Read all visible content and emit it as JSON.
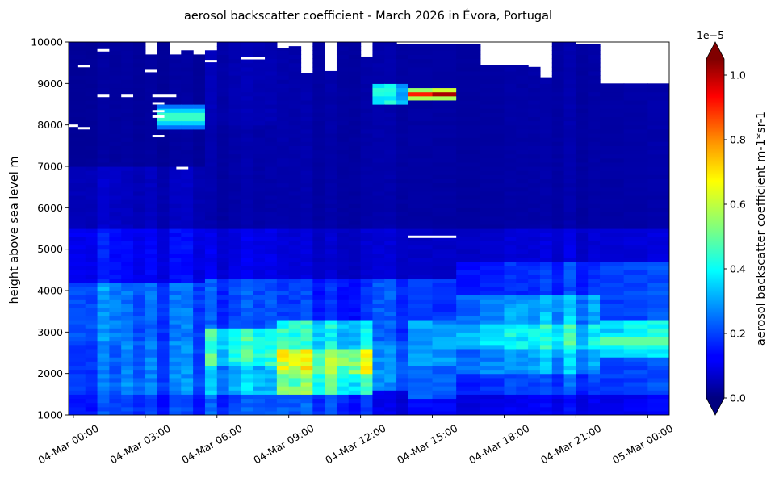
{
  "chart_data": {
    "type": "heatmap",
    "title": "aerosol backscatter coefficient - March 2026 in Évora, Portugal",
    "ylabel": "height above sea level m",
    "xlabel": "",
    "x_ticks": [
      "04-Mar 00:00",
      "04-Mar 03:00",
      "04-Mar 06:00",
      "04-Mar 09:00",
      "04-Mar 12:00",
      "04-Mar 15:00",
      "04-Mar 18:00",
      "04-Mar 21:00",
      "05-Mar 00:00"
    ],
    "x_tick_hours": [
      0,
      3,
      6,
      9,
      12,
      15,
      18,
      21,
      24
    ],
    "xlim_hours": [
      -0.2,
      24.9
    ],
    "ylim": [
      1000,
      10000
    ],
    "y_ticks": [
      1000,
      2000,
      3000,
      4000,
      5000,
      6000,
      7000,
      8000,
      9000,
      10000
    ],
    "colorbar": {
      "label": "aerosol backscatter coefficient m-1*sr-1",
      "multiplier": "1e−5",
      "ticks": [
        0.0,
        0.2,
        0.4,
        0.6,
        0.8,
        1.0
      ],
      "tick_labels": [
        "0.0",
        "0.2",
        "0.4",
        "0.6",
        "0.8",
        "1.0"
      ],
      "vmin": 0.0,
      "vmax": 1.05,
      "colormap": "jet",
      "extend": "both"
    },
    "column_edges_hours": [
      -0.2,
      0.5,
      1.0,
      1.5,
      2.0,
      2.5,
      3.0,
      3.5,
      4.0,
      4.5,
      5.0,
      5.5,
      6.0,
      6.5,
      7.0,
      7.5,
      8.0,
      8.5,
      9.0,
      9.5,
      10.0,
      10.5,
      11.0,
      11.5,
      12.0,
      12.5,
      13.0,
      13.5,
      14.0,
      15.0,
      16.0,
      17.0,
      18.0,
      18.5,
      19.0,
      19.5,
      20.0,
      20.5,
      21.0,
      21.5,
      22.0,
      23.0,
      24.0,
      24.9
    ],
    "column_tops_m": [
      10000,
      10000,
      10000,
      10000,
      10000,
      10000,
      9700,
      10000,
      9700,
      9800,
      9700,
      9800,
      10000,
      10000,
      10000,
      10000,
      10000,
      9850,
      9900,
      9250,
      10000,
      9300,
      10000,
      10000,
      9650,
      10000,
      10000,
      9950,
      9950,
      9950,
      9950,
      9450,
      9450,
      9450,
      9400,
      9150,
      10000,
      10000,
      9950,
      9950,
      9000,
      9000,
      9000
    ],
    "column_profiles": [
      {
        "hour_start": -0.2,
        "layers": [
          [
            1000,
            1500,
            0.18
          ],
          [
            1500,
            2800,
            0.22
          ],
          [
            2800,
            4200,
            0.25
          ],
          [
            4200,
            5500,
            0.14
          ],
          [
            5500,
            7000,
            0.07
          ],
          [
            7000,
            10000,
            0.03
          ]
        ]
      },
      {
        "hour_start": 2.0,
        "layers": [
          [
            1000,
            1500,
            0.18
          ],
          [
            1500,
            2800,
            0.24
          ],
          [
            2800,
            4200,
            0.22
          ],
          [
            4200,
            5500,
            0.12
          ],
          [
            5500,
            7000,
            0.06
          ],
          [
            7000,
            10000,
            0.03
          ]
        ]
      },
      {
        "hour_start": 5.5,
        "layers": [
          [
            1000,
            1500,
            0.2
          ],
          [
            1500,
            2200,
            0.3
          ],
          [
            2200,
            3100,
            0.4
          ],
          [
            3100,
            4300,
            0.2
          ],
          [
            4300,
            5500,
            0.1
          ],
          [
            5500,
            8000,
            0.04
          ],
          [
            8000,
            10000,
            0.05
          ]
        ]
      },
      {
        "hour_start": 8.5,
        "layers": [
          [
            1000,
            1500,
            0.2
          ],
          [
            1500,
            2000,
            0.45
          ],
          [
            2000,
            2600,
            0.55
          ],
          [
            2600,
            3300,
            0.38
          ],
          [
            3300,
            4300,
            0.17
          ],
          [
            4300,
            5500,
            0.08
          ],
          [
            5500,
            10000,
            0.04
          ]
        ]
      },
      {
        "hour_start": 11.5,
        "layers": [
          [
            1000,
            1500,
            0.18
          ],
          [
            1500,
            2000,
            0.45
          ],
          [
            2000,
            2600,
            0.62
          ],
          [
            2600,
            3300,
            0.38
          ],
          [
            3300,
            4300,
            0.17
          ],
          [
            4300,
            5500,
            0.08
          ],
          [
            5500,
            10000,
            0.04
          ]
        ]
      },
      {
        "hour_start": 12.5,
        "layers": [
          [
            1000,
            1600,
            0.1
          ],
          [
            1600,
            2800,
            0.25
          ],
          [
            2800,
            4300,
            0.2
          ],
          [
            4300,
            5500,
            0.08
          ],
          [
            5500,
            8500,
            0.04
          ],
          [
            8500,
            9000,
            0.35
          ],
          [
            9000,
            10000,
            0.04
          ]
        ]
      },
      {
        "hour_start": 14.0,
        "layers": [
          [
            1000,
            1400,
            0.15
          ],
          [
            1400,
            2200,
            0.25
          ],
          [
            2200,
            3300,
            0.32
          ],
          [
            3300,
            4300,
            0.2
          ],
          [
            4300,
            5500,
            0.08
          ],
          [
            5500,
            8600,
            0.04
          ],
          [
            8600,
            8700,
            0.6
          ],
          [
            8700,
            8850,
            0.98
          ],
          [
            8850,
            8950,
            0.6
          ],
          [
            8950,
            10000,
            0.04
          ]
        ]
      },
      {
        "hour_start": 16.0,
        "layers": [
          [
            1000,
            1500,
            0.12
          ],
          [
            1500,
            2000,
            0.2
          ],
          [
            2000,
            2600,
            0.3
          ],
          [
            2600,
            3200,
            0.4
          ],
          [
            3200,
            3900,
            0.3
          ],
          [
            3900,
            4700,
            0.18
          ],
          [
            4700,
            5500,
            0.09
          ],
          [
            5500,
            10000,
            0.04
          ]
        ]
      },
      {
        "hour_start": 22.0,
        "layers": [
          [
            1000,
            1500,
            0.12
          ],
          [
            1500,
            2400,
            0.2
          ],
          [
            2400,
            3300,
            0.38
          ],
          [
            3300,
            4700,
            0.2
          ],
          [
            4700,
            5500,
            0.09
          ],
          [
            5500,
            10000,
            0.04
          ]
        ]
      }
    ],
    "features": [
      {
        "desc": "elevated aerosol layer",
        "hour_start": 14.0,
        "hour_end": 16.0,
        "height_m": 8800,
        "value": 0.98
      },
      {
        "desc": "lofted layer",
        "hour_start": 3.5,
        "hour_end": 5.5,
        "height_m": 8200,
        "value": 0.5
      },
      {
        "desc": "low layer maximum",
        "hour_start": 10.5,
        "hour_end": 11.5,
        "height_m": 2300,
        "value": 0.62
      },
      {
        "desc": "evening layer",
        "hour_start": 22.0,
        "hour_end": 24.9,
        "height_m": 2800,
        "value": 0.55
      }
    ],
    "missing_strips": [
      {
        "hour_start": -0.2,
        "hour_end": 0.2,
        "height_m": 7980
      },
      {
        "hour_start": 0.2,
        "hour_end": 0.7,
        "height_m": 7920
      },
      {
        "hour_start": 0.2,
        "hour_end": 0.7,
        "height_m": 9420
      },
      {
        "hour_start": 1.0,
        "hour_end": 1.5,
        "height_m": 8700
      },
      {
        "hour_start": 1.0,
        "hour_end": 1.5,
        "height_m": 9800
      },
      {
        "hour_start": 2.0,
        "hour_end": 2.5,
        "height_m": 8700
      },
      {
        "hour_start": 3.0,
        "hour_end": 3.5,
        "height_m": 9300
      },
      {
        "hour_start": 3.3,
        "hour_end": 4.3,
        "height_m": 8700
      },
      {
        "hour_start": 3.3,
        "hour_end": 3.8,
        "height_m": 8520
      },
      {
        "hour_start": 3.3,
        "hour_end": 3.8,
        "height_m": 8330
      },
      {
        "hour_start": 3.3,
        "hour_end": 3.8,
        "height_m": 8200
      },
      {
        "hour_start": 3.3,
        "hour_end": 3.8,
        "height_m": 7730
      },
      {
        "hour_start": 4.3,
        "hour_end": 4.8,
        "height_m": 6960
      },
      {
        "hour_start": 5.5,
        "hour_end": 6.0,
        "height_m": 9540
      },
      {
        "hour_start": 7.0,
        "hour_end": 8.0,
        "height_m": 9610
      },
      {
        "hour_start": 14.0,
        "hour_end": 16.0,
        "height_m": 5300
      }
    ]
  }
}
